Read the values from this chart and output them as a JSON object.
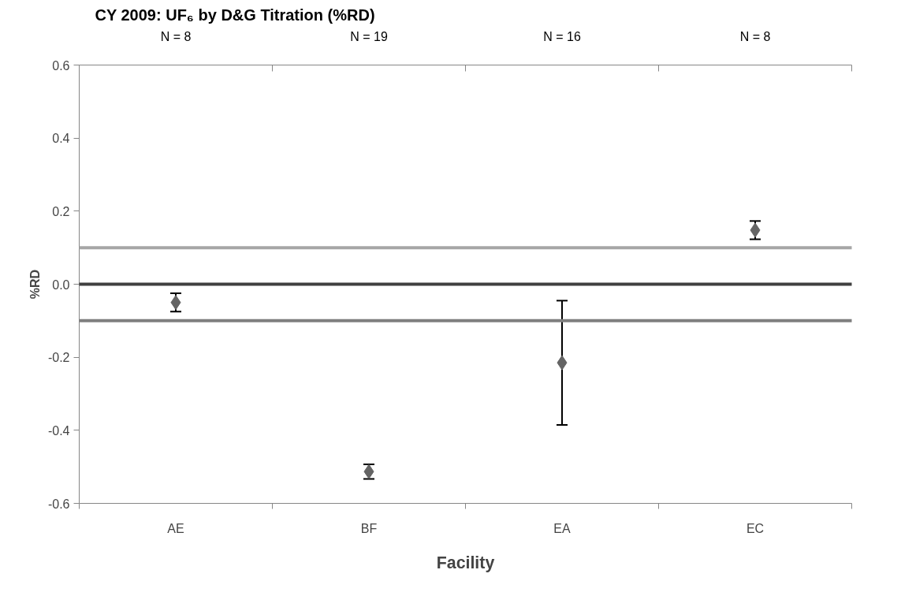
{
  "chart_data": {
    "type": "scatter",
    "title": "CY 2009: UF₆ by D&G Titration (%RD)",
    "xlabel": "Facility",
    "ylabel": "%RD",
    "categories": [
      "AE",
      "BF",
      "EA",
      "EC"
    ],
    "values": [
      -0.05,
      -0.513,
      -0.215,
      0.148
    ],
    "errors": [
      0.025,
      0.02,
      0.17,
      0.025
    ],
    "color": "#646464",
    "marker": "diamond",
    "ylim": [
      -0.6,
      0.6
    ],
    "yticks": [
      {
        "value": -0.6,
        "label": "-0.6"
      },
      {
        "value": -0.4,
        "label": "-0.4"
      },
      {
        "value": -0.2,
        "label": "-0.2"
      },
      {
        "value": 0,
        "label": "0.0"
      },
      {
        "value": 0.2,
        "label": "0.2"
      },
      {
        "value": 0.4,
        "label": "0.4"
      },
      {
        "value": 0.6,
        "label": "0.6"
      }
    ],
    "ref_lines": [
      {
        "axis": "y",
        "value": 0.1,
        "color": "#a6a6a6"
      },
      {
        "axis": "y",
        "value": 0,
        "color": "#404040"
      },
      {
        "axis": "y",
        "value": -0.1,
        "color": "#7f7f7f"
      }
    ],
    "annotations": [
      "N = 8",
      "N = 19",
      "N = 16",
      "N = 8"
    ],
    "grid": false
  }
}
